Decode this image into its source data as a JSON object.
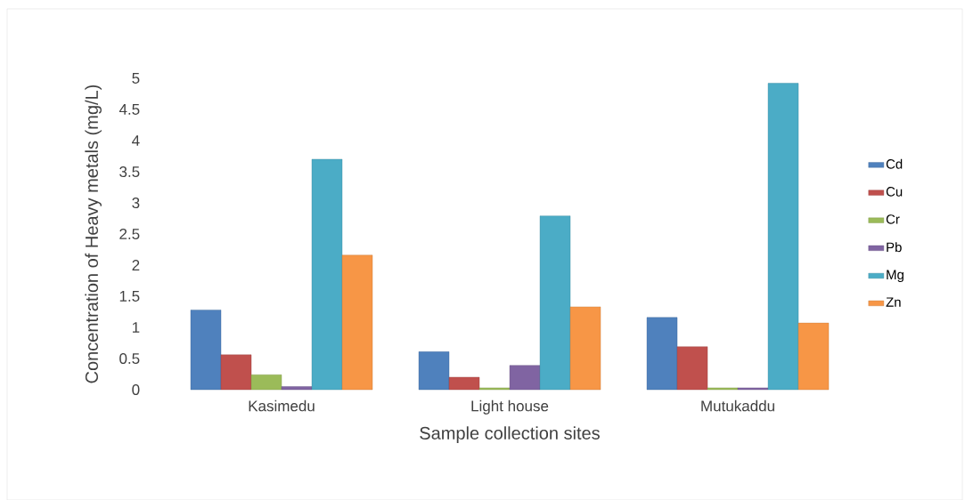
{
  "chart_data": {
    "type": "bar",
    "xlabel": "Sample collection sites",
    "ylabel": "Concentration of Heavy metals (mg/L)",
    "categories": [
      "Kasimedu",
      "Light house",
      "Mutukaddu"
    ],
    "series": [
      {
        "name": "Cd",
        "color": "#4f81bd",
        "values": [
          1.28,
          0.61,
          1.16
        ]
      },
      {
        "name": "Cu",
        "color": "#c0504d",
        "values": [
          0.56,
          0.2,
          0.69
        ]
      },
      {
        "name": "Cr",
        "color": "#9bbb59",
        "values": [
          0.24,
          0.03,
          0.03
        ]
      },
      {
        "name": "Pb",
        "color": "#8064a2",
        "values": [
          0.05,
          0.39,
          0.03
        ]
      },
      {
        "name": "Mg",
        "color": "#4bacc6",
        "values": [
          3.7,
          2.79,
          4.92
        ]
      },
      {
        "name": "Zn",
        "color": "#f79646",
        "values": [
          2.16,
          1.33,
          1.07
        ]
      }
    ],
    "ylim": [
      0,
      5
    ],
    "yticks": [
      0,
      0.5,
      1,
      1.5,
      2,
      2.5,
      3,
      3.5,
      4,
      4.5,
      5
    ],
    "legend": "right"
  }
}
